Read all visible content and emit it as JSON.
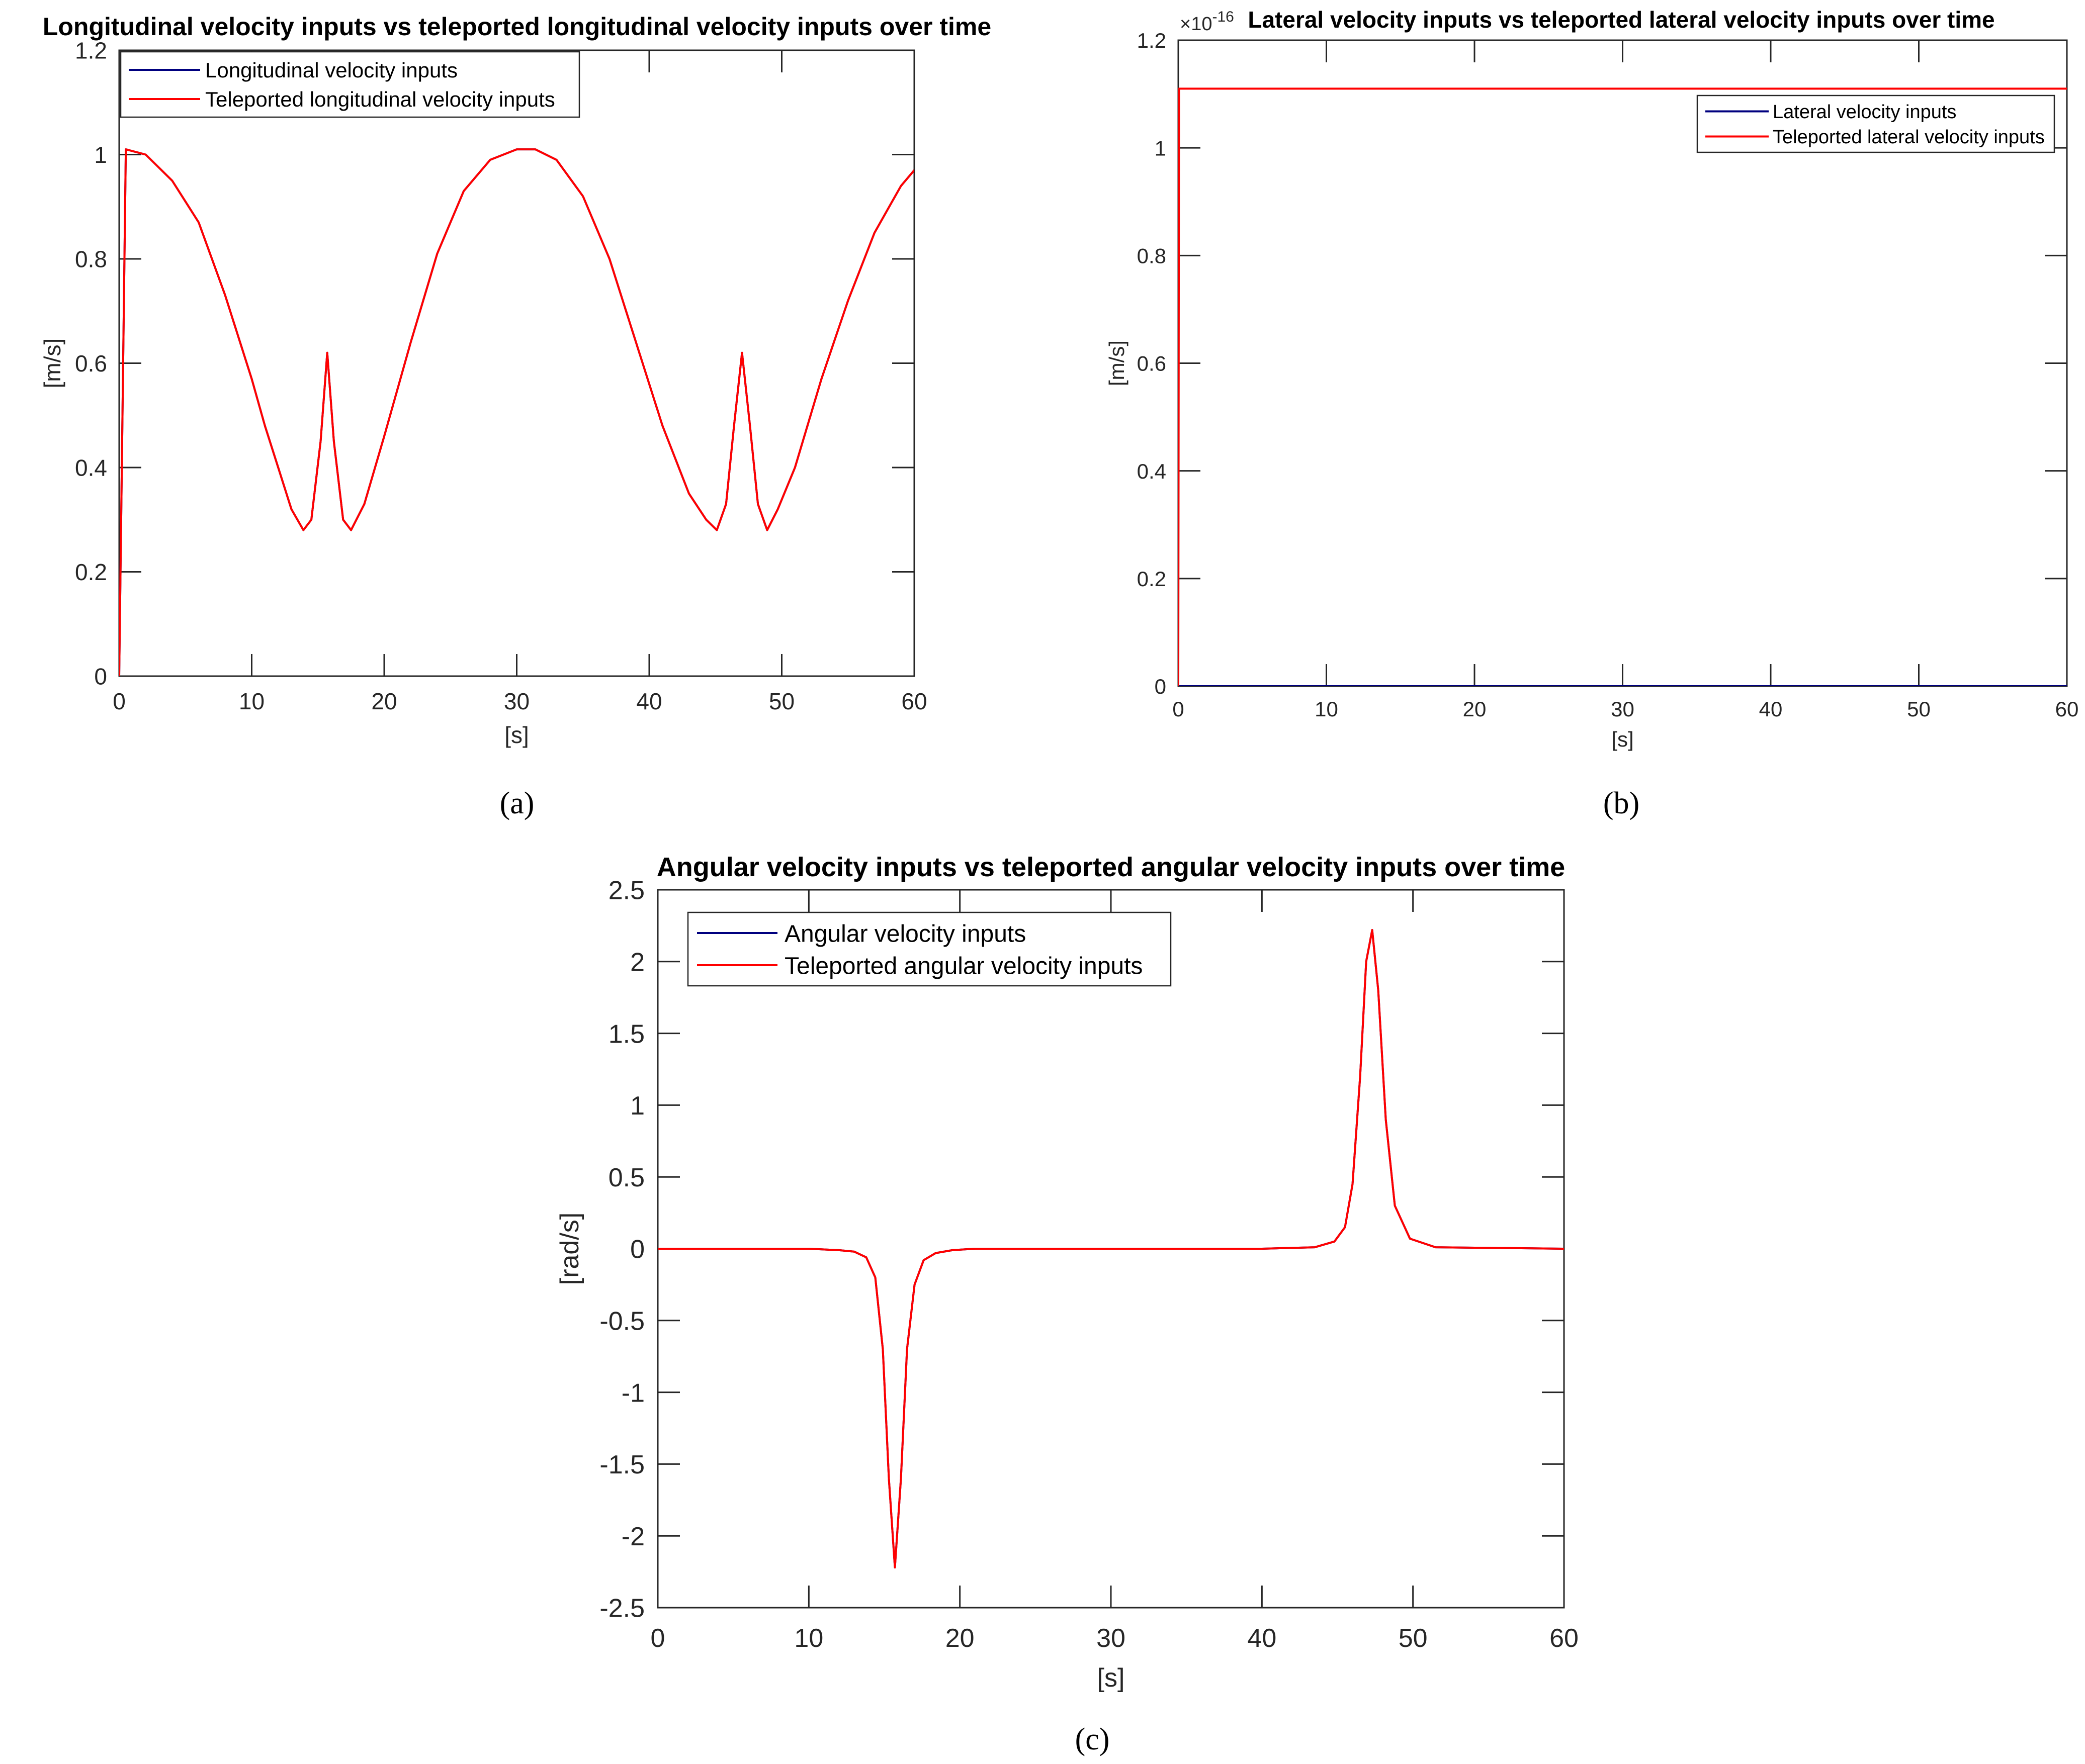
{
  "chart_data": [
    {
      "type": "line",
      "title": "Longitudinal velocity inputs vs teleported longitudinal velocity inputs over time",
      "xlabel": "[s]",
      "ylabel": "[m/s]",
      "xlim": [
        0,
        60
      ],
      "ylim": [
        0,
        1.2
      ],
      "xticks": [
        "0",
        "10",
        "20",
        "30",
        "40",
        "50",
        "60"
      ],
      "yticks": [
        "0",
        "0.2",
        "0.4",
        "0.6",
        "0.8",
        "1",
        "1.2"
      ],
      "grid": false,
      "legend": "top-left",
      "caption": "(a)",
      "series": [
        {
          "name": "Longitudinal velocity inputs",
          "color": "#00007f",
          "x": [
            0,
            0.5,
            2,
            4,
            6,
            8,
            10,
            11,
            12,
            13,
            13.9,
            14.5,
            15.2,
            15.7,
            16.2,
            16.9,
            17.5,
            18.5,
            20,
            22,
            24,
            26,
            28,
            30,
            31.4,
            33,
            35,
            37,
            39,
            41,
            43,
            44.3,
            45.1,
            45.8,
            46.4,
            47,
            47.6,
            48.2,
            48.9,
            49.7,
            51,
            53,
            55,
            57,
            59,
            60
          ],
          "y": [
            0,
            1.01,
            1,
            0.95,
            0.87,
            0.73,
            0.57,
            0.48,
            0.4,
            0.32,
            0.28,
            0.3,
            0.45,
            0.62,
            0.45,
            0.3,
            0.28,
            0.33,
            0.46,
            0.64,
            0.81,
            0.93,
            0.99,
            1.01,
            1.01,
            0.99,
            0.92,
            0.8,
            0.64,
            0.48,
            0.35,
            0.3,
            0.28,
            0.33,
            0.48,
            0.62,
            0.48,
            0.33,
            0.28,
            0.32,
            0.4,
            0.57,
            0.72,
            0.85,
            0.94,
            0.97
          ]
        },
        {
          "name": "Teleported longitudinal velocity inputs",
          "color": "#ff0000",
          "x": [
            0,
            0.5,
            2,
            4,
            6,
            8,
            10,
            11,
            12,
            13,
            13.9,
            14.5,
            15.2,
            15.7,
            16.2,
            16.9,
            17.5,
            18.5,
            20,
            22,
            24,
            26,
            28,
            30,
            31.4,
            33,
            35,
            37,
            39,
            41,
            43,
            44.3,
            45.1,
            45.8,
            46.4,
            47,
            47.6,
            48.2,
            48.9,
            49.7,
            51,
            53,
            55,
            57,
            59,
            60
          ],
          "y": [
            0,
            1.01,
            1,
            0.95,
            0.87,
            0.73,
            0.57,
            0.48,
            0.4,
            0.32,
            0.28,
            0.3,
            0.45,
            0.62,
            0.45,
            0.3,
            0.28,
            0.33,
            0.46,
            0.64,
            0.81,
            0.93,
            0.99,
            1.01,
            1.01,
            0.99,
            0.92,
            0.8,
            0.64,
            0.48,
            0.35,
            0.3,
            0.28,
            0.33,
            0.48,
            0.62,
            0.48,
            0.33,
            0.28,
            0.32,
            0.4,
            0.57,
            0.72,
            0.85,
            0.94,
            0.97
          ]
        }
      ]
    },
    {
      "type": "line",
      "title": "Lateral velocity inputs vs teleported lateral velocity inputs over time",
      "xlabel": "[s]",
      "ylabel": "[m/s]",
      "xlim": [
        0,
        60
      ],
      "ylim": [
        0,
        1.2
      ],
      "exponent_label": "×10",
      "exponent_power": "-16",
      "xticks": [
        "0",
        "10",
        "20",
        "30",
        "40",
        "50",
        "60"
      ],
      "yticks": [
        "0",
        "0.2",
        "0.4",
        "0.6",
        "0.8",
        "1",
        "1.2"
      ],
      "grid": false,
      "legend": "top-right",
      "caption": "(b)",
      "series": [
        {
          "name": "Lateral velocity inputs",
          "color": "#00007f",
          "x": [
            0,
            60
          ],
          "y": [
            0,
            0
          ]
        },
        {
          "name": "Teleported lateral velocity inputs",
          "color": "#ff0000",
          "x": [
            0,
            0.05,
            60
          ],
          "y": [
            0,
            1.11,
            1.11
          ]
        }
      ]
    },
    {
      "type": "line",
      "title": "Angular velocity inputs vs teleported angular velocity inputs over time",
      "xlabel": "[s]",
      "ylabel": "[rad/s]",
      "xlim": [
        0,
        60
      ],
      "ylim": [
        -2.5,
        2.5
      ],
      "xticks": [
        "0",
        "10",
        "20",
        "30",
        "40",
        "50",
        "60"
      ],
      "yticks": [
        "-2.5",
        "-2",
        "-1.5",
        "-1",
        "-0.5",
        "0",
        "0.5",
        "1",
        "1.5",
        "2",
        "2.5"
      ],
      "grid": false,
      "legend": "top-left",
      "caption": "(c)",
      "series": [
        {
          "name": "Angular velocity inputs",
          "color": "#00007f",
          "x": [
            0,
            10,
            12,
            13,
            13.8,
            14.4,
            14.9,
            15.3,
            15.7,
            16.1,
            16.5,
            17,
            17.6,
            18.4,
            19.5,
            21,
            30,
            40,
            43.5,
            44.8,
            45.5,
            46,
            46.5,
            46.9,
            47.3,
            47.7,
            48.2,
            48.8,
            49.8,
            51.5,
            60
          ],
          "y": [
            0,
            0,
            -0.01,
            -0.02,
            -0.06,
            -0.2,
            -0.7,
            -1.6,
            -2.22,
            -1.6,
            -0.7,
            -0.25,
            -0.08,
            -0.03,
            -0.01,
            0,
            0,
            0,
            0.01,
            0.05,
            0.15,
            0.45,
            1.2,
            2.0,
            2.22,
            1.8,
            0.9,
            0.3,
            0.07,
            0.01,
            0
          ]
        },
        {
          "name": "Teleported angular velocity inputs",
          "color": "#ff0000",
          "x": [
            0,
            10,
            12,
            13,
            13.8,
            14.4,
            14.9,
            15.3,
            15.7,
            16.1,
            16.5,
            17,
            17.6,
            18.4,
            19.5,
            21,
            30,
            40,
            43.5,
            44.8,
            45.5,
            46,
            46.5,
            46.9,
            47.3,
            47.7,
            48.2,
            48.8,
            49.8,
            51.5,
            60
          ],
          "y": [
            0,
            0,
            -0.01,
            -0.02,
            -0.06,
            -0.2,
            -0.7,
            -1.6,
            -2.22,
            -1.6,
            -0.7,
            -0.25,
            -0.08,
            -0.03,
            -0.01,
            0,
            0,
            0,
            0.01,
            0.05,
            0.15,
            0.45,
            1.2,
            2.0,
            2.22,
            1.8,
            0.9,
            0.3,
            0.07,
            0.01,
            0
          ]
        }
      ]
    }
  ]
}
